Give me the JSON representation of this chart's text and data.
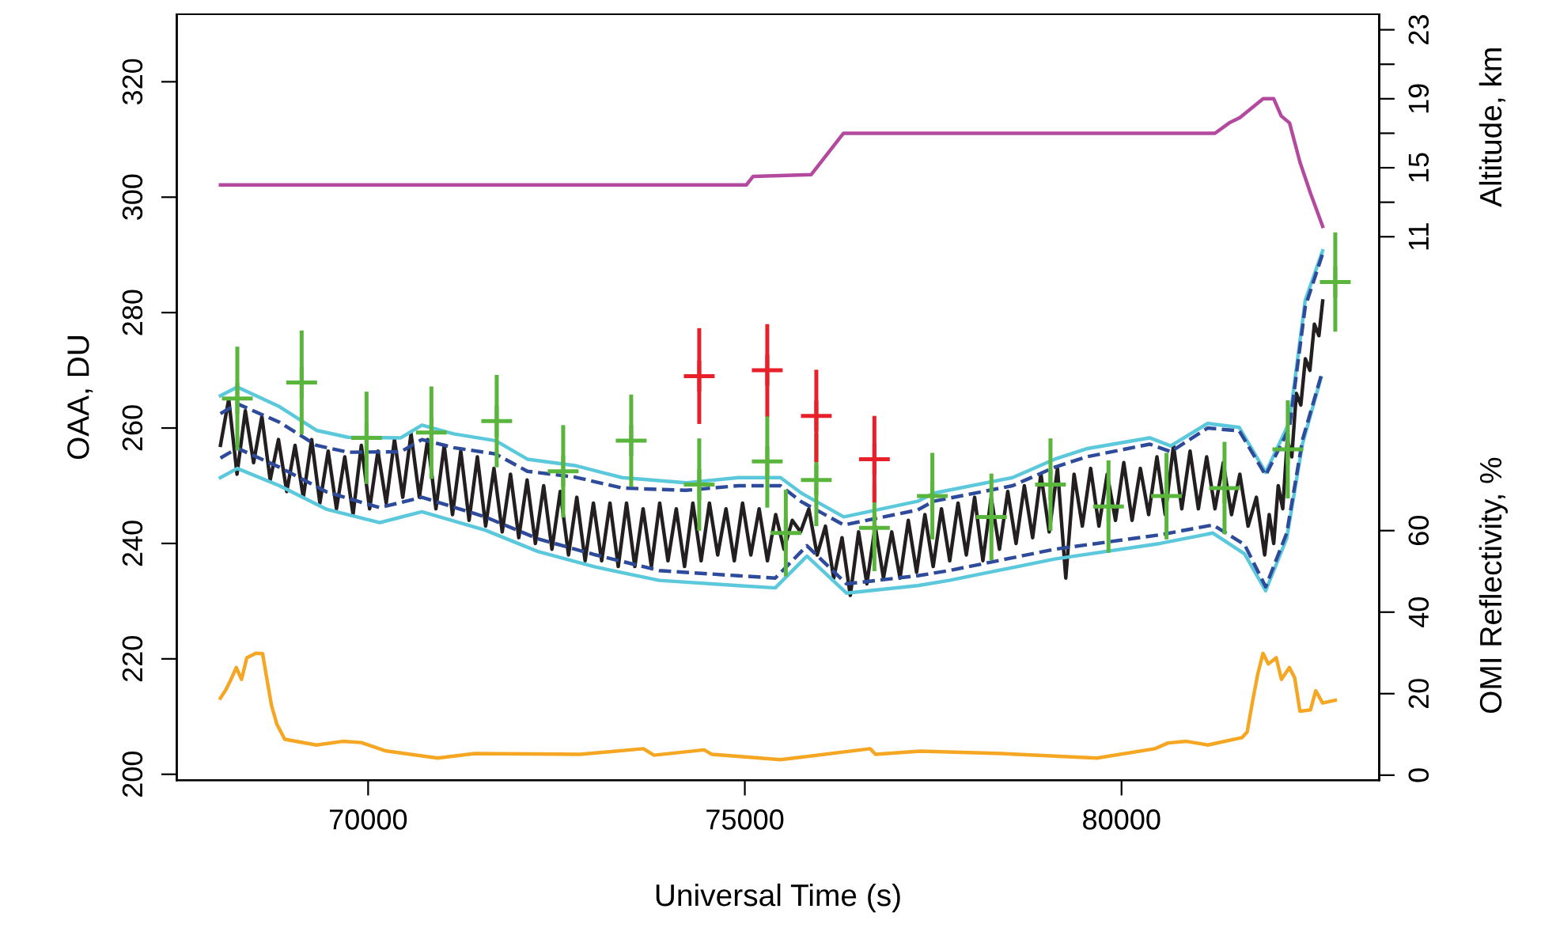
{
  "chart_data": {
    "type": "line",
    "xlabel": "Universal Time (s)",
    "ylabel": "OAA, DU",
    "y2label": "Altitude, km",
    "y3label": "OMI Reflectivity, %",
    "xlim": [
      67460,
      83420
    ],
    "xticks": [
      70000,
      75000,
      80000
    ],
    "ylim": [
      199,
      331.7
    ],
    "yticks": [
      200,
      220,
      240,
      260,
      280,
      300,
      320
    ],
    "y2lim": [
      -20.5,
      23.9
    ],
    "y2ticks": [
      11,
      {
        "value": 13,
        "label": null
      },
      15,
      {
        "value": 17,
        "label": null
      },
      19,
      {
        "value": 21,
        "label": null
      },
      23
    ],
    "y3lim": [
      -1.2,
      186.7
    ],
    "y3ticks": [
      0,
      20,
      40,
      60
    ],
    "series": [
      {
        "color": "#231f20",
        "line_style": "solid",
        "x": [
          68040,
          68150,
          68260,
          68370,
          68480,
          68590,
          68700,
          68810,
          68920,
          69030,
          69140,
          69250,
          69360,
          69470,
          69580,
          69690,
          69800,
          69910,
          70020,
          70130,
          70240,
          70350,
          70460,
          70570,
          70680,
          70790,
          70900,
          71010,
          71120,
          71230,
          71340,
          71450,
          71560,
          71670,
          71780,
          71890,
          72000,
          72110,
          72220,
          72330,
          72440,
          72550,
          72660,
          72770,
          72880,
          72990,
          73100,
          73210,
          73320,
          73430,
          73540,
          73650,
          73760,
          73870,
          73980,
          74090,
          74200,
          74310,
          74420,
          74530,
          74640,
          74750,
          74860,
          74970,
          75080,
          75190,
          75300,
          75410,
          75520,
          75630,
          75740,
          75850,
          75960,
          76070,
          76180,
          76290,
          76400,
          76510,
          76620,
          76730,
          76840,
          76950,
          77060,
          77170,
          77280,
          77390,
          77500,
          77610,
          77720,
          77830,
          77940,
          78050,
          78160,
          78270,
          78380,
          78490,
          78600,
          78710,
          78820,
          78930,
          79040,
          79150,
          79260,
          79370,
          79480,
          79590,
          79700,
          79810,
          79920,
          80030,
          80140,
          80250,
          80360,
          80470,
          80580,
          80690,
          80800,
          80910,
          81020,
          81130,
          81240,
          81350,
          81460,
          81570,
          81680,
          81790,
          81900,
          81960,
          82020,
          82080,
          82140,
          82200,
          82260,
          82320,
          82380,
          82440,
          82500,
          82560,
          82620,
          82670
        ],
        "values": [
          257,
          265,
          252,
          263,
          254,
          262,
          251,
          258,
          249,
          257,
          248,
          258,
          247,
          256,
          246,
          255,
          245,
          257,
          246,
          256,
          247,
          258,
          248,
          259,
          248,
          258,
          246,
          257,
          245,
          256,
          244,
          255,
          243,
          253,
          242,
          252,
          241,
          251,
          240,
          250,
          239,
          249,
          238,
          248,
          237,
          247,
          237,
          247,
          236,
          247,
          236,
          246,
          236,
          247,
          237,
          246,
          236,
          247,
          237,
          247,
          238,
          246,
          237,
          247,
          238,
          246,
          237,
          245,
          239,
          244,
          242,
          246,
          238,
          243,
          234,
          241,
          231,
          242,
          233,
          243,
          234,
          242,
          234,
          244,
          235,
          245,
          236,
          246,
          237,
          247,
          238,
          248,
          237,
          248,
          239,
          249,
          240,
          250,
          241,
          252,
          242,
          253,
          234,
          252,
          243,
          253,
          243,
          252,
          244,
          254,
          244,
          253,
          245,
          255,
          245,
          257,
          246,
          256,
          246,
          255,
          246,
          254,
          245,
          252,
          243,
          248,
          238,
          245,
          240,
          250,
          246,
          258,
          255,
          266,
          264,
          272,
          270,
          278,
          276,
          282
        ]
      },
      {
        "type": "line",
        "color": "#5bc8dc",
        "line_style": "solid",
        "x": [
          68040,
          68264,
          68824,
          69314,
          69734,
          70434,
          70714,
          71134,
          71694,
          72114,
          72744,
          73374,
          74214,
          74914,
          75474,
          75754,
          76314,
          77294,
          77503,
          78553,
          79113,
          79533,
          80373,
          80653,
          81143,
          81563,
          81913,
          82228,
          82438,
          82669
        ],
        "values": [
          265.6,
          267.1,
          263.7,
          259.6,
          258.4,
          258.3,
          260.5,
          259.0,
          257.8,
          254.6,
          253.5,
          251.4,
          250.5,
          251.4,
          251.4,
          248.7,
          244.6,
          247.3,
          248.7,
          251.4,
          254.6,
          256.4,
          258.3,
          256.9,
          260.8,
          260.1,
          252.3,
          261.0,
          282.1,
          290.7
        ]
      },
      {
        "type": "line",
        "color": "#5bc8dc",
        "line_style": "solid",
        "x": [
          68040,
          68264,
          68824,
          69454,
          70154,
          70714,
          71554,
          72254,
          73024,
          73864,
          74914,
          75404,
          75824,
          76349,
          77294,
          77713,
          79113,
          80513,
          81213,
          81633,
          81913,
          82193,
          82403,
          82648
        ],
        "values": [
          251.4,
          253.0,
          250.0,
          245.9,
          243.6,
          245.5,
          242.3,
          238.6,
          235.9,
          233.6,
          232.7,
          232.3,
          237.8,
          231.4,
          232.7,
          233.6,
          237.3,
          240.0,
          241.8,
          238.2,
          231.8,
          240.9,
          257.3,
          268.7
        ]
      },
      {
        "type": "line",
        "color": "#2e4a9a",
        "line_style": "dashed",
        "x": [
          68040,
          68264,
          68824,
          69314,
          69734,
          70434,
          70714,
          71134,
          71694,
          72114,
          72744,
          73374,
          74214,
          74914,
          75474,
          75754,
          76314,
          77294,
          77503,
          78553,
          79113,
          79533,
          80373,
          80653,
          81143,
          81563,
          81913,
          82228,
          82438,
          82669
        ],
        "values": [
          262.5,
          264.2,
          261.0,
          257.0,
          255.8,
          255.9,
          258.0,
          256.6,
          255.5,
          252.5,
          251.5,
          249.6,
          249.2,
          250.0,
          250.0,
          247.2,
          243.2,
          245.8,
          247.3,
          250.0,
          253.2,
          255.0,
          257.2,
          255.9,
          260.0,
          259.5,
          251.8,
          260.0,
          281.0,
          290.2
        ]
      },
      {
        "type": "line",
        "color": "#2e4a9a",
        "line_style": "dashed",
        "x": [
          68040,
          68264,
          68824,
          69454,
          70154,
          70714,
          71554,
          72254,
          73024,
          73864,
          74914,
          75404,
          75824,
          76349,
          77294,
          77713,
          79113,
          80513,
          81213,
          81633,
          81913,
          82193,
          82403,
          82648
        ],
        "values": [
          254.8,
          256.5,
          253.2,
          248.9,
          246.2,
          248.0,
          244.6,
          240.8,
          238.0,
          235.3,
          234.4,
          234.0,
          239.6,
          233.0,
          234.4,
          235.3,
          239.0,
          241.5,
          243.2,
          239.8,
          232.5,
          241.8,
          258.0,
          269.0
        ]
      },
      {
        "type": "scatter",
        "color": "#5ab53c",
        "marker": "cross",
        "x": [
          68264,
          69118,
          69979,
          70840,
          71707,
          72589,
          73492,
          74395,
          75298,
          75544,
          75949,
          76720,
          77489,
          78273,
          79057,
          79827,
          80597,
          81367,
          82207,
          82837
        ],
        "values": [
          265.1,
          267.9,
          258.3,
          259.2,
          261.2,
          252.5,
          257.8,
          250.2,
          254.2,
          241.8,
          251.0,
          242.7,
          248.2,
          244.6,
          250.2,
          246.4,
          248.2,
          249.6,
          256.3,
          285.3
        ],
        "errors": [
          9,
          9,
          8,
          8,
          8,
          8,
          8,
          8,
          8,
          7.5,
          8,
          7.5,
          7.5,
          7.5,
          8,
          8,
          7.5,
          8,
          8.5,
          8.6
        ]
      },
      {
        "type": "scatter",
        "color": "#e8202a",
        "marker": "cross",
        "x": [
          74395,
          75298,
          75949,
          76720
        ],
        "values": [
          269.0,
          270.0,
          262.1,
          254.6
        ],
        "errors": [
          8.3,
          8,
          8,
          7.5
        ]
      },
      {
        "type": "line",
        "axis": "y2",
        "color": "#b44a9f",
        "line_style": "solid",
        "x": [
          68040,
          75020,
          75110,
          75880,
          76310,
          81240,
          81430,
          81570,
          81880,
          82020,
          82120,
          82230,
          82370,
          82510,
          82670
        ],
        "values": [
          14.0,
          14.0,
          14.5,
          14.6,
          17.0,
          17.0,
          17.6,
          17.9,
          19.0,
          19.0,
          18.0,
          17.6,
          15.3,
          13.5,
          11.6
        ]
      },
      {
        "type": "line",
        "axis": "y3",
        "color": "#f5a623",
        "line_style": "solid",
        "x": [
          68040,
          68110,
          68180,
          68250,
          68320,
          68390,
          68509,
          68600,
          68649,
          68719,
          68789,
          68894,
          69314,
          69664,
          69909,
          70224,
          70924,
          71414,
          72814,
          73654,
          73794,
          74459,
          74564,
          75474,
          76663,
          76734,
          77329,
          78413,
          79673,
          80443,
          80618,
          80863,
          81143,
          81598,
          81668,
          81738,
          81808,
          81878,
          81948,
          82053,
          82123,
          82228,
          82298,
          82368,
          82508,
          82578,
          82669,
          82837
        ],
        "values": [
          18.9,
          20.9,
          23.5,
          26.4,
          23.5,
          28.8,
          29.9,
          29.8,
          24.4,
          17.0,
          12.5,
          8.8,
          7.4,
          8.3,
          8.0,
          6.0,
          4.2,
          5.3,
          5.1,
          6.5,
          4.9,
          6.2,
          5.1,
          3.8,
          6.5,
          5.1,
          5.9,
          5.3,
          4.2,
          6.5,
          7.9,
          8.3,
          7.4,
          9.2,
          10.6,
          18.0,
          24.8,
          29.9,
          27.3,
          28.8,
          23.5,
          26.4,
          23.9,
          15.7,
          16.0,
          20.7,
          17.7,
          18.4
        ]
      }
    ]
  }
}
